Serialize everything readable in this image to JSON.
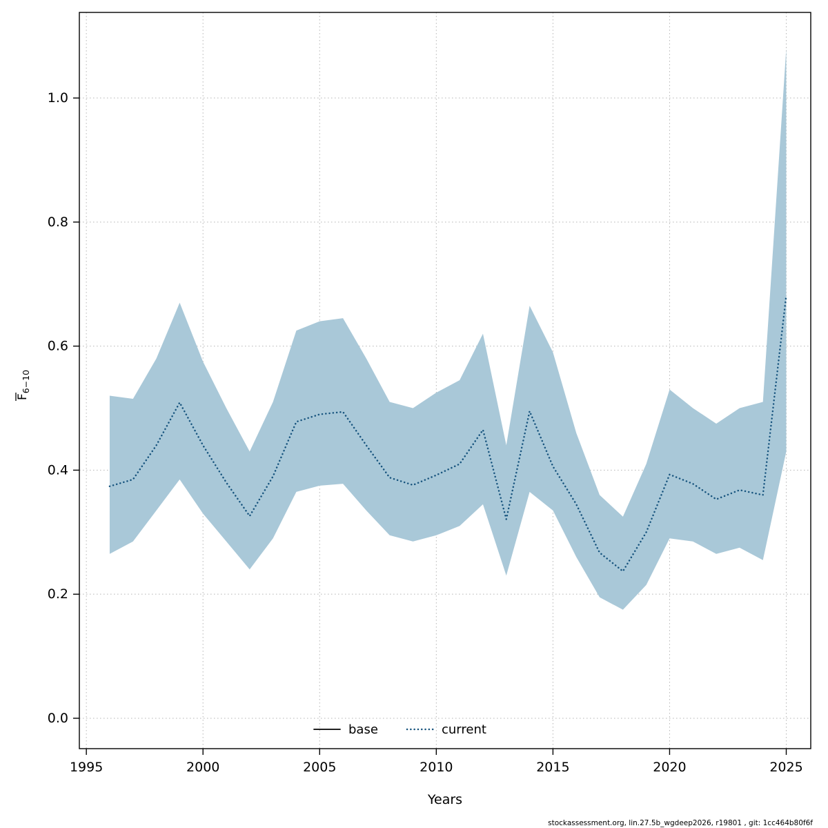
{
  "chart_data": {
    "type": "line",
    "title": "",
    "xlabel": "Years",
    "ylabel": "F (mean over ages 6-10, with overbar)",
    "ylabel_main": "F",
    "ylabel_sub": "6−10",
    "xlim": [
      1994.7,
      2026.05
    ],
    "ylim": [
      -0.049,
      1.138
    ],
    "xticks": [
      1995,
      2000,
      2005,
      2010,
      2015,
      2020,
      2025
    ],
    "yticks": [
      0.0,
      0.2,
      0.4,
      0.6,
      0.8,
      1.0
    ],
    "grid": "dotted",
    "x": [
      1996,
      1997,
      1998,
      1999,
      2000,
      2001,
      2002,
      2003,
      2004,
      2005,
      2006,
      2007,
      2008,
      2009,
      2010,
      2011,
      2012,
      2013,
      2014,
      2015,
      2016,
      2017,
      2018,
      2019,
      2020,
      2021,
      2022,
      2023,
      2024,
      2025
    ],
    "series": [
      {
        "name": "current",
        "line_style": "dotted",
        "color": "#17547e",
        "values": [
          0.374,
          0.385,
          0.44,
          0.509,
          0.44,
          0.38,
          0.326,
          0.39,
          0.478,
          0.49,
          0.494,
          0.44,
          0.388,
          0.376,
          0.392,
          0.41,
          0.465,
          0.321,
          0.495,
          0.406,
          0.345,
          0.267,
          0.237,
          0.3,
          0.393,
          0.378,
          0.353,
          0.368,
          0.36,
          0.682
        ]
      }
    ],
    "band": {
      "name": "confidence-band",
      "color": "#a9c8d8",
      "lower": [
        0.265,
        0.285,
        0.335,
        0.385,
        0.33,
        0.285,
        0.24,
        0.29,
        0.365,
        0.375,
        0.378,
        0.335,
        0.295,
        0.285,
        0.295,
        0.31,
        0.345,
        0.23,
        0.365,
        0.335,
        0.26,
        0.195,
        0.175,
        0.215,
        0.29,
        0.285,
        0.265,
        0.275,
        0.255,
        0.43
      ],
      "upper": [
        0.52,
        0.515,
        0.58,
        0.67,
        0.575,
        0.5,
        0.43,
        0.51,
        0.625,
        0.64,
        0.645,
        0.58,
        0.51,
        0.5,
        0.525,
        0.545,
        0.62,
        0.44,
        0.665,
        0.59,
        0.46,
        0.36,
        0.325,
        0.41,
        0.53,
        0.5,
        0.475,
        0.5,
        0.51,
        1.08
      ]
    },
    "legend_position": "bottom-center-inside"
  },
  "legend": {
    "items": [
      {
        "label": "base",
        "line_style": "solid",
        "color": "#000000"
      },
      {
        "label": "current",
        "line_style": "dotted",
        "color": "#17547e"
      }
    ]
  },
  "axes": {
    "x_label": "Years",
    "y_label_main": "F",
    "y_label_sub": "6−10"
  },
  "footer": {
    "attribution": "stockassessment.org, lin.27.5b_wgdeep2026, r19801 , git: 1cc464b80f6f"
  },
  "colors": {
    "band": "#a9c8d8",
    "current_line": "#17547e",
    "base_line": "#000000",
    "grid": "#b3b3b3",
    "axis": "#000000"
  }
}
